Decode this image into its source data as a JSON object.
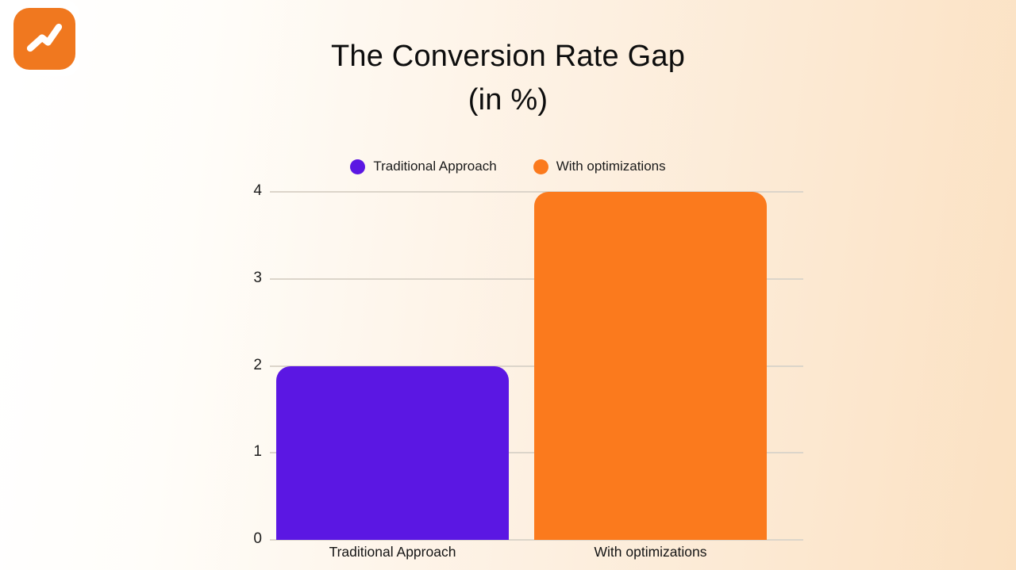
{
  "logo": {
    "icon": "trending-up-icon",
    "background_color": "#f0781f",
    "stroke_color": "#ffffff"
  },
  "title": {
    "line1": "The Conversion Rate Gap",
    "line2": "(in %)"
  },
  "legend": {
    "items": [
      {
        "label": "Traditional Approach",
        "color": "#5b17e3"
      },
      {
        "label": "With optimizations",
        "color": "#fb7a1d"
      }
    ]
  },
  "chart_data": {
    "type": "bar",
    "title": "The Conversion Rate Gap",
    "subtitle": "(in %)",
    "categories": [
      "Traditional Approach",
      "With optimizations"
    ],
    "values": [
      2,
      4
    ],
    "bar_colors": [
      "#5b17e3",
      "#fb7a1d"
    ],
    "xlabel": "",
    "ylabel": "",
    "ylim": [
      0,
      4
    ],
    "yticks": [
      0,
      1,
      2,
      3,
      4
    ],
    "grid": true,
    "legend_position": "top"
  },
  "colors": {
    "background_left": "#ffffff",
    "background_right": "#fbe1c2",
    "gridline": "#dcd5ca",
    "text": "#141414"
  }
}
